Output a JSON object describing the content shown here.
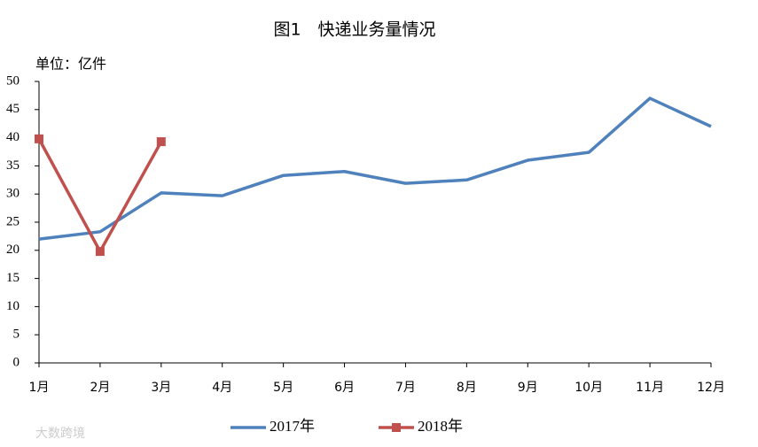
{
  "chart_data": {
    "type": "line",
    "title": "图1　快递业务量情况",
    "y_label": "单位：亿件",
    "watermark": "大数跨境",
    "categories": [
      "1月",
      "2月",
      "3月",
      "4月",
      "5月",
      "6月",
      "7月",
      "8月",
      "9月",
      "10月",
      "11月",
      "12月"
    ],
    "series": [
      {
        "name": "2017年",
        "color": "#4f81bd",
        "marker": "none",
        "values": [
          22.0,
          23.3,
          30.2,
          29.7,
          33.3,
          34.0,
          31.9,
          32.5,
          36.0,
          37.4,
          47.0,
          42.0
        ]
      },
      {
        "name": "2018年",
        "color": "#c0504d",
        "marker": "square",
        "values": [
          39.8,
          19.8,
          39.3,
          null,
          null,
          null,
          null,
          null,
          null,
          null,
          null,
          null
        ]
      }
    ],
    "ylim": [
      0,
      50
    ],
    "yticks": [
      0,
      5,
      10,
      15,
      20,
      25,
      30,
      35,
      40,
      45,
      50
    ],
    "grid": false,
    "legend": "bottom"
  }
}
